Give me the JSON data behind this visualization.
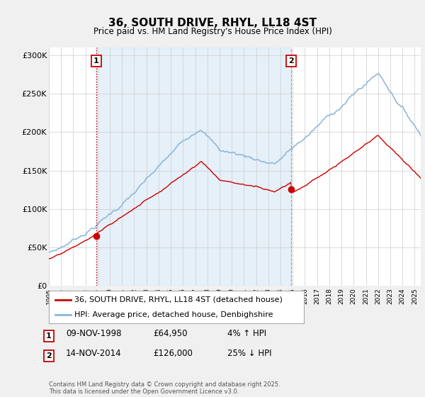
{
  "title": "36, SOUTH DRIVE, RHYL, LL18 4ST",
  "subtitle": "Price paid vs. HM Land Registry's House Price Index (HPI)",
  "ylabel_ticks": [
    "£0",
    "£50K",
    "£100K",
    "£150K",
    "£200K",
    "£250K",
    "£300K"
  ],
  "ytick_values": [
    0,
    50000,
    100000,
    150000,
    200000,
    250000,
    300000
  ],
  "ylim": [
    0,
    310000
  ],
  "xlim_start": 1995.0,
  "xlim_end": 2025.5,
  "hpi_color": "#8ab4d8",
  "hpi_fill_color": "#d0e4f5",
  "price_color": "#cc0000",
  "vline1_color": "#cc0000",
  "vline1_style": ":",
  "vline2_color": "#aaaacc",
  "vline2_style": "--",
  "marker1_x": 1998.87,
  "marker1_y": 64950,
  "marker2_x": 2014.87,
  "marker2_y": 126000,
  "legend_label_red": "36, SOUTH DRIVE, RHYL, LL18 4ST (detached house)",
  "legend_label_blue": "HPI: Average price, detached house, Denbighshire",
  "annotation1_date": "09-NOV-1998",
  "annotation1_price": "£64,950",
  "annotation1_hpi": "4% ↑ HPI",
  "annotation2_date": "14-NOV-2014",
  "annotation2_price": "£126,000",
  "annotation2_hpi": "25% ↓ HPI",
  "footer": "Contains HM Land Registry data © Crown copyright and database right 2025.\nThis data is licensed under the Open Government Licence v3.0.",
  "background_color": "#f0f0f0",
  "plot_bg_color": "#ffffff"
}
